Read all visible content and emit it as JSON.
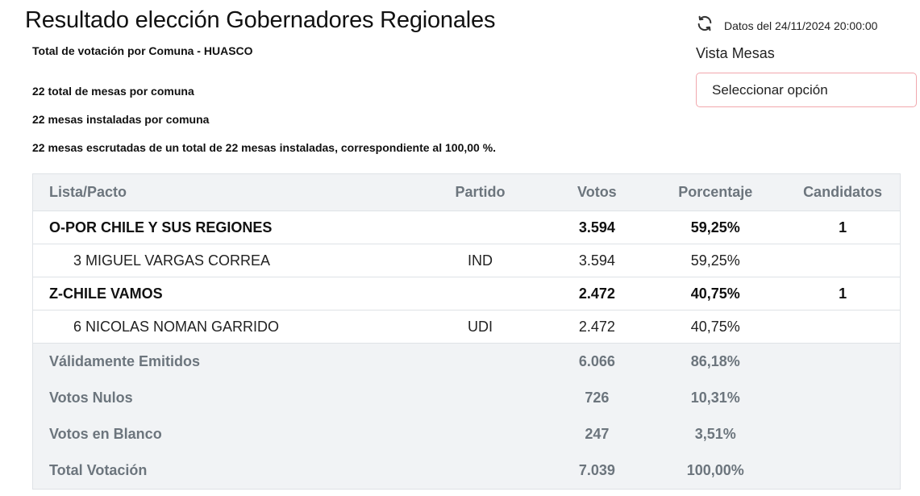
{
  "header": {
    "title": "Resultado elección Gobernadores Regionales",
    "subtitle": "Total de votación por Comuna - HUASCO",
    "stats": [
      "22 total de mesas por comuna",
      "22 mesas instaladas por comuna",
      "22 mesas escrutadas de un total de 22 mesas instaladas, correspondiente al 100,00 %."
    ],
    "update_text": "Datos del 24/11/2024 20:00:00",
    "update_icon": "refresh-icon"
  },
  "vista": {
    "label": "Vista Mesas",
    "select_value": "Seleccionar opción"
  },
  "table": {
    "columns": [
      "Lista/Pacto",
      "Partido",
      "Votos",
      "Porcentaje",
      "Candidatos"
    ],
    "rows": [
      {
        "type": "group",
        "name": "O-POR CHILE Y SUS REGIONES",
        "partido": "",
        "votos": "3.594",
        "porcentaje": "59,25%",
        "candidatos": "1"
      },
      {
        "type": "cand",
        "name": "3 MIGUEL VARGAS CORREA",
        "partido": "IND",
        "votos": "3.594",
        "porcentaje": "59,25%",
        "candidatos": ""
      },
      {
        "type": "group",
        "name": "Z-CHILE VAMOS",
        "partido": "",
        "votos": "2.472",
        "porcentaje": "40,75%",
        "candidatos": "1"
      },
      {
        "type": "cand",
        "name": "6 NICOLAS NOMAN GARRIDO",
        "partido": "UDI",
        "votos": "2.472",
        "porcentaje": "40,75%",
        "candidatos": ""
      }
    ],
    "summary": [
      {
        "name": "Válidamente Emitidos",
        "votos": "6.066",
        "porcentaje": "86,18%"
      },
      {
        "name": "Votos Nulos",
        "votos": "726",
        "porcentaje": "10,31%"
      },
      {
        "name": "Votos en Blanco",
        "votos": "247",
        "porcentaje": "3,51%"
      },
      {
        "name": "Total Votación",
        "votos": "7.039",
        "porcentaje": "100,00%"
      }
    ]
  },
  "colors": {
    "header_bg": "#f1f3f5",
    "muted_text": "#6c757d",
    "select_border": "#f1a7ad"
  }
}
